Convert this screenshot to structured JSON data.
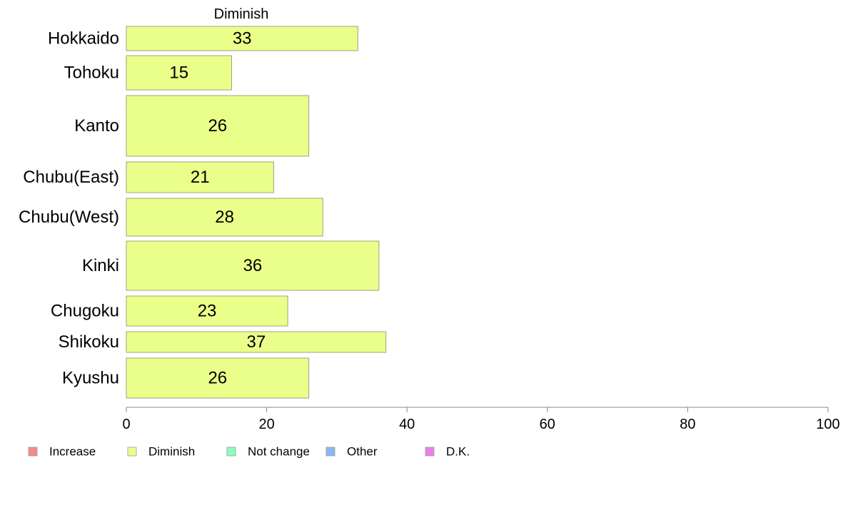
{
  "chart_data": {
    "type": "bar",
    "orientation": "horizontal",
    "title": "Diminish",
    "categories": [
      "Hokkaido",
      "Tohoku",
      "Kanto",
      "Chubu(East)",
      "Chubu(West)",
      "Kinki",
      "Chugoku",
      "Shikoku",
      "Kyushu"
    ],
    "series": [
      {
        "name": "Diminish",
        "values": [
          33,
          15,
          26,
          21,
          28,
          36,
          23,
          37,
          26
        ]
      }
    ],
    "data_labels": [
      "33",
      "15",
      "26",
      "21",
      "28",
      "36",
      "23",
      "37",
      "26"
    ],
    "xlim": [
      0,
      100
    ],
    "xticks": [
      0,
      20,
      40,
      60,
      80,
      100
    ],
    "xtick_labels": [
      "0",
      "20",
      "40",
      "60",
      "80",
      "100"
    ],
    "grid": false,
    "legend_position": "bottom-left",
    "legend": [
      {
        "label": "Increase",
        "color": "#f4898a"
      },
      {
        "label": "Diminish",
        "color": "#eaff8a"
      },
      {
        "label": "Not change",
        "color": "#8affc0"
      },
      {
        "label": "Other",
        "color": "#8ab8f4"
      },
      {
        "label": "D.K.",
        "color": "#ee7eee"
      }
    ],
    "bar_color": "#eaff8a",
    "bar_stroke": "#a0a080",
    "axis_color": "#888888"
  }
}
